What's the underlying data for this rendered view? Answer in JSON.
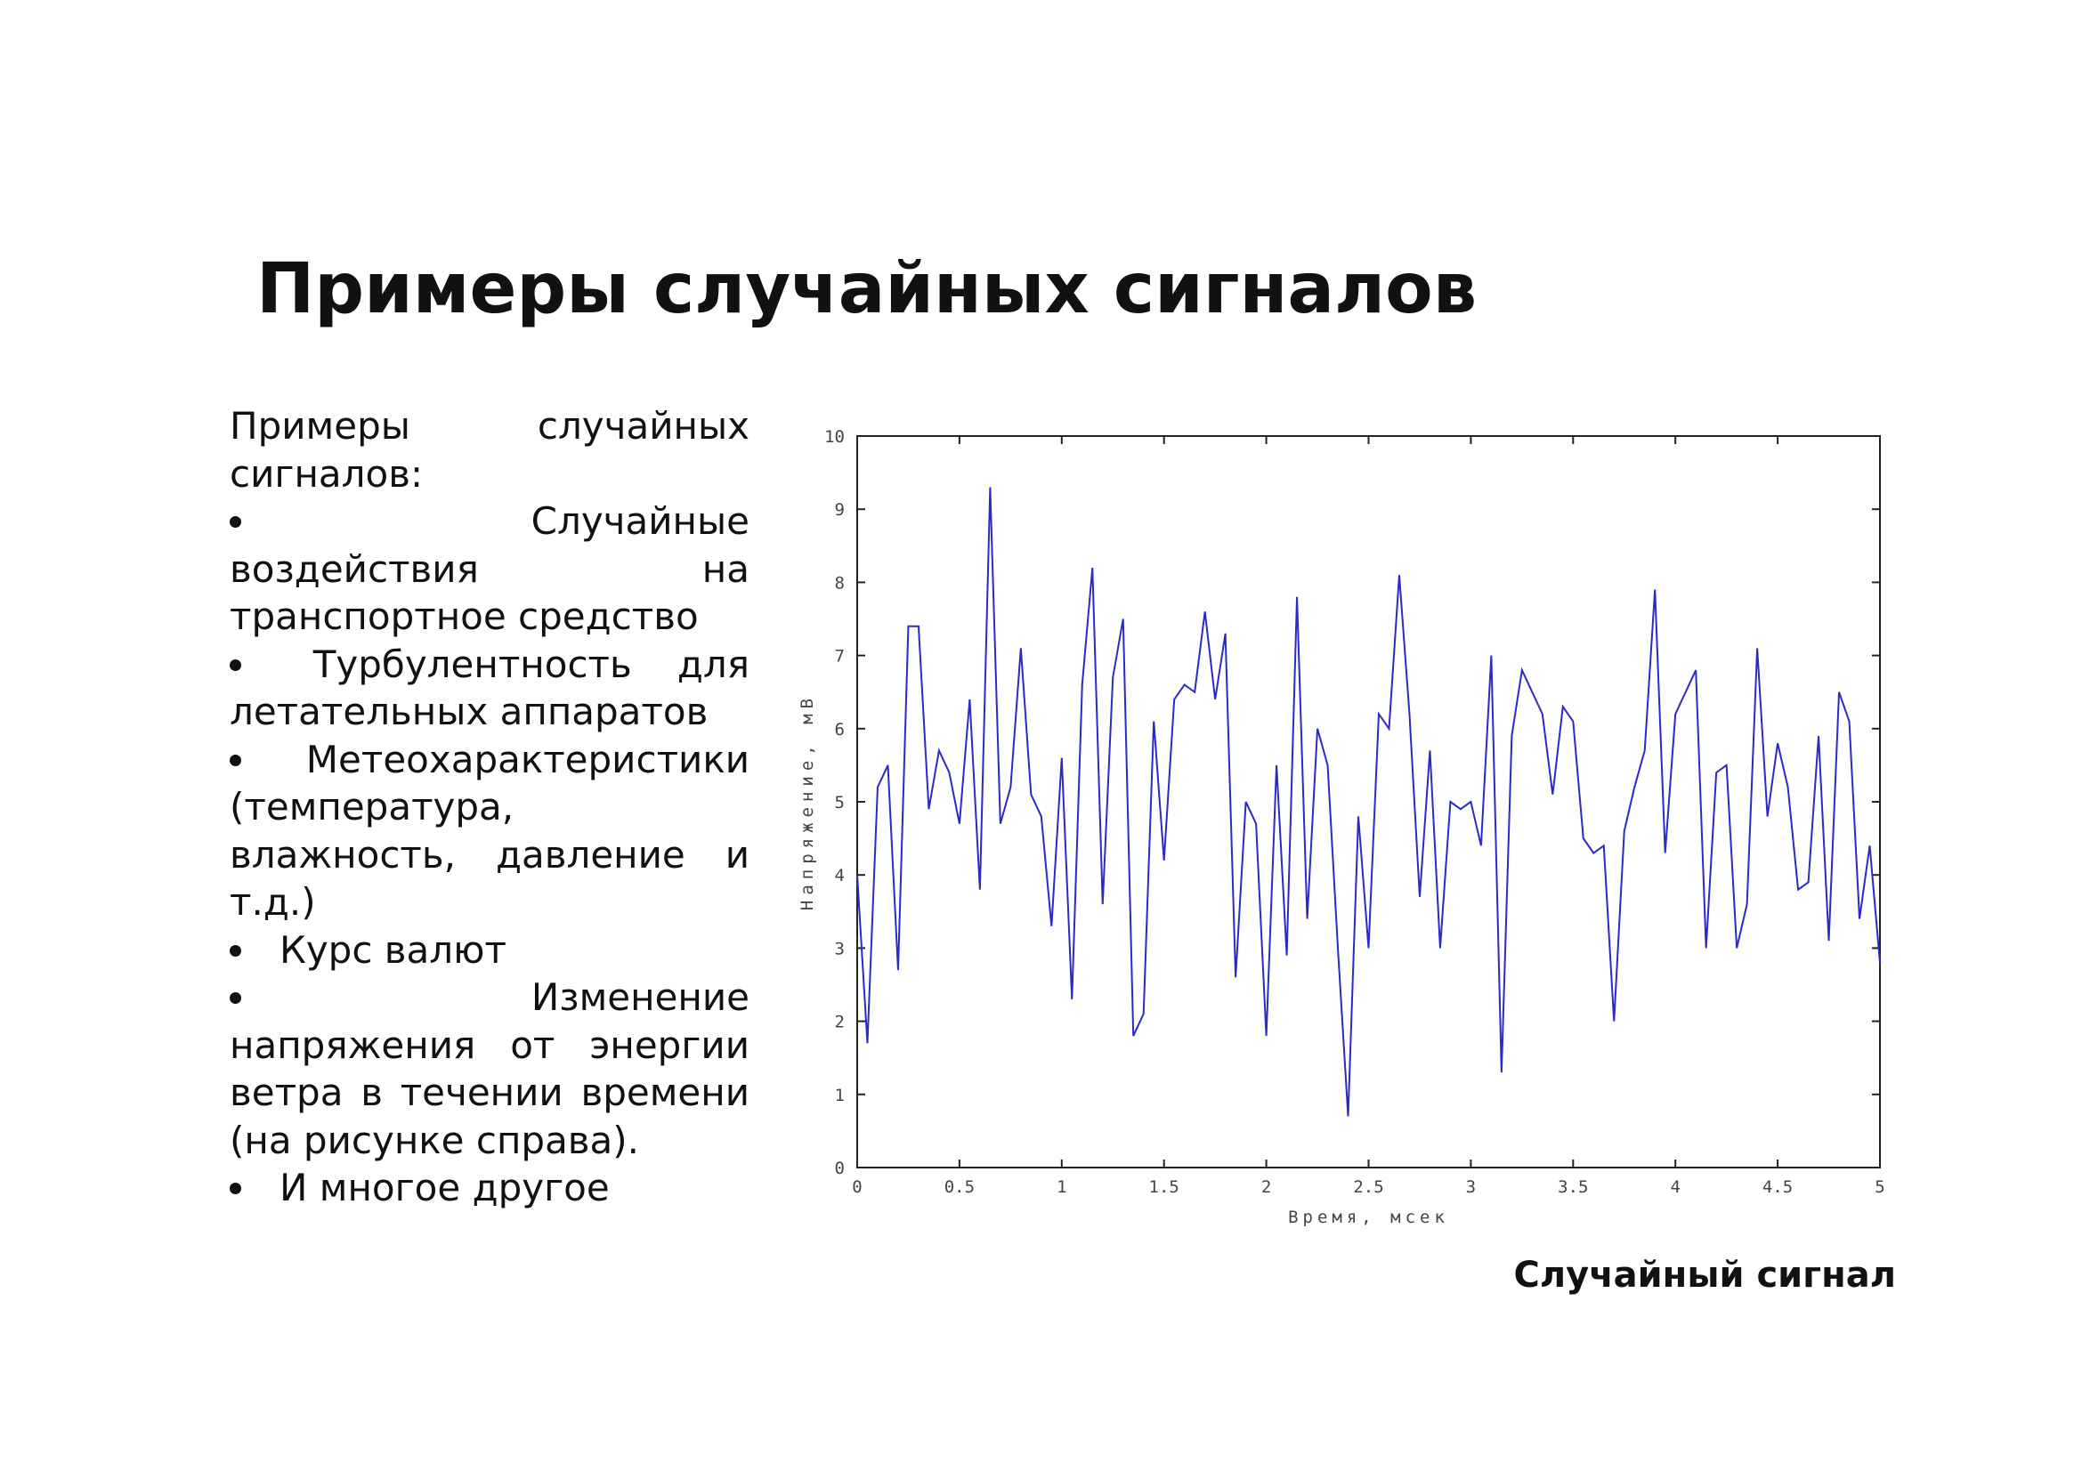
{
  "title": "Примеры случайных сигналов",
  "text": {
    "intro": "Примеры случайных сигналов:",
    "items": [
      "Случайные воздействия на транспортное средство",
      "Турбулентность для летательных аппаратов",
      "Метеохарактеристики (температура, влажность, давление и т.д.)",
      "Курс валют",
      "Изменение напряжения от энергии ветра в течении времени (на рисунке справа).",
      "И многое другое"
    ]
  },
  "chart_data": {
    "type": "line",
    "xlabel": "Время, мсек",
    "ylabel": "Напряжение, мВ",
    "color": "#2a2ac8",
    "x": [
      0,
      0.05,
      0.1,
      0.15,
      0.2,
      0.25,
      0.3,
      0.35,
      0.4,
      0.45,
      0.5,
      0.55,
      0.6,
      0.65,
      0.7,
      0.75,
      0.8,
      0.85,
      0.9,
      0.95,
      1,
      1.05,
      1.1,
      1.15,
      1.2,
      1.25,
      1.3,
      1.35,
      1.4,
      1.45,
      1.5,
      1.55,
      1.6,
      1.65,
      1.7,
      1.75,
      1.8,
      1.85,
      1.9,
      1.95,
      2,
      2.05,
      2.1,
      2.15,
      2.2,
      2.25,
      2.3,
      2.35,
      2.4,
      2.45,
      2.5,
      2.55,
      2.6,
      2.65,
      2.7,
      2.75,
      2.8,
      2.85,
      2.9,
      2.95,
      3,
      3.05,
      3.1,
      3.15,
      3.2,
      3.25,
      3.3,
      3.35,
      3.4,
      3.45,
      3.5,
      3.55,
      3.6,
      3.65,
      3.7,
      3.75,
      3.8,
      3.85,
      3.9,
      3.95,
      4,
      4.05,
      4.1,
      4.15,
      4.2,
      4.25,
      4.3,
      4.35,
      4.4,
      4.45,
      4.5,
      4.55,
      4.6,
      4.65,
      4.7,
      4.75,
      4.8,
      4.85,
      4.9,
      4.95,
      5
    ],
    "values": [
      4.0,
      1.7,
      5.2,
      5.5,
      2.7,
      7.4,
      7.4,
      4.9,
      5.7,
      5.4,
      4.7,
      6.4,
      3.8,
      9.3,
      4.7,
      5.2,
      7.1,
      5.1,
      4.8,
      3.3,
      5.6,
      2.3,
      6.6,
      8.2,
      3.6,
      6.7,
      7.5,
      1.8,
      2.1,
      6.1,
      4.2,
      6.4,
      6.6,
      6.5,
      7.6,
      6.4,
      7.3,
      2.6,
      5.0,
      4.7,
      1.8,
      5.5,
      2.9,
      7.8,
      3.4,
      6.0,
      5.5,
      3.0,
      0.7,
      4.8,
      3.0,
      6.2,
      6.0,
      8.1,
      6.2,
      3.7,
      5.7,
      3.0,
      5.0,
      4.9,
      5.0,
      4.4,
      7.0,
      1.3,
      5.9,
      6.8,
      6.5,
      6.2,
      5.1,
      6.3,
      6.1,
      4.5,
      4.3,
      4.4,
      2.0,
      4.6,
      5.2,
      5.7,
      7.9,
      4.3,
      6.2,
      6.5,
      6.8,
      3.0,
      5.4,
      5.5,
      3.0,
      3.6,
      7.1,
      4.8,
      5.8,
      5.2,
      3.8,
      3.9,
      5.9,
      3.1,
      6.5,
      6.1,
      3.4,
      4.4,
      2.8
    ],
    "xlim": [
      0,
      5
    ],
    "ylim": [
      0,
      10
    ],
    "xticks": [
      0,
      0.5,
      1,
      1.5,
      2,
      2.5,
      3,
      3.5,
      4,
      4.5,
      5
    ],
    "yticks": [
      0,
      1,
      2,
      3,
      4,
      5,
      6,
      7,
      8,
      9,
      10
    ]
  },
  "caption": "Случайный сигнал"
}
